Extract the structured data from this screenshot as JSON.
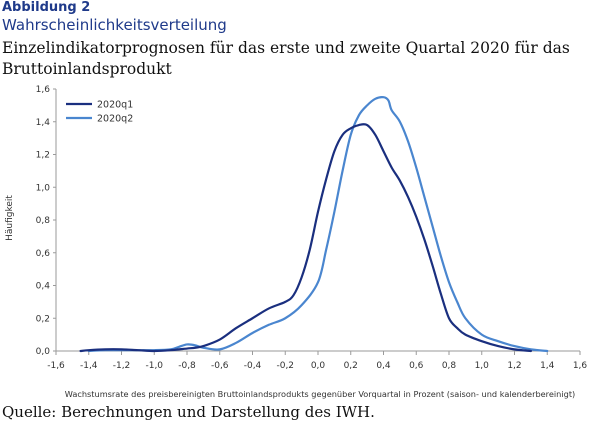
{
  "figure": {
    "label": "Abbildung 2",
    "title": "Wahrscheinlichkeitsverteilung",
    "subtitle": "Einzelindikatorprognosen für das erste und zweite Quartal 2020 für das Bruttoinlandsprodukt",
    "source": "Quelle: Berechnungen und Darstellung des IWH."
  },
  "colors": {
    "series1": "#1a2f7f",
    "series2": "#4a86cf",
    "axis": "#9a9a9a",
    "text": "#333333"
  },
  "chart_data": {
    "type": "line",
    "title": "",
    "xlabel": "Wachstumsrate des preisbereinigten Bruttoinlandsprodukts gegenüber Vorquartal in Prozent (saison- und kalenderbereinigt)",
    "ylabel": "Häufigkeit",
    "xlim": [
      -1.6,
      1.6
    ],
    "ylim": [
      0,
      1.6
    ],
    "x_ticks": [
      "-1,6",
      "-1,4",
      "-1,2",
      "-1,0",
      "-0,8",
      "-0,6",
      "-0,4",
      "-0,2",
      "0,0",
      "0,2",
      "0,4",
      "0,6",
      "0,8",
      "1,0",
      "1,2",
      "1,4",
      "1,6"
    ],
    "y_ticks": [
      "0,0",
      "0,2",
      "0,4",
      "0,6",
      "0,8",
      "1,0",
      "1,2",
      "1,4",
      "1,6"
    ],
    "grid": false,
    "legend_position": "top-left",
    "series": [
      {
        "name": "2020q1",
        "color": "#1a2f7f",
        "x": [
          -1.45,
          -1.4,
          -1.3,
          -1.2,
          -1.1,
          -1.0,
          -0.9,
          -0.8,
          -0.75,
          -0.7,
          -0.6,
          -0.5,
          -0.4,
          -0.3,
          -0.2,
          -0.15,
          -0.1,
          -0.05,
          0.0,
          0.05,
          0.1,
          0.15,
          0.2,
          0.25,
          0.3,
          0.35,
          0.4,
          0.45,
          0.5,
          0.55,
          0.6,
          0.65,
          0.7,
          0.75,
          0.8,
          0.85,
          0.9,
          1.0,
          1.1,
          1.2,
          1.3
        ],
        "y": [
          0.0,
          0.005,
          0.01,
          0.01,
          0.005,
          0.0,
          0.005,
          0.015,
          0.02,
          0.03,
          0.07,
          0.14,
          0.2,
          0.26,
          0.3,
          0.34,
          0.45,
          0.62,
          0.85,
          1.05,
          1.22,
          1.32,
          1.36,
          1.38,
          1.38,
          1.32,
          1.22,
          1.12,
          1.04,
          0.94,
          0.82,
          0.68,
          0.52,
          0.35,
          0.2,
          0.14,
          0.1,
          0.06,
          0.03,
          0.01,
          0.0
        ]
      },
      {
        "name": "2020q2",
        "color": "#4a86cf",
        "x": [
          -1.4,
          -1.3,
          -1.2,
          -1.1,
          -1.0,
          -0.9,
          -0.85,
          -0.8,
          -0.75,
          -0.7,
          -0.6,
          -0.5,
          -0.4,
          -0.3,
          -0.2,
          -0.1,
          0.0,
          0.05,
          0.1,
          0.15,
          0.2,
          0.25,
          0.3,
          0.35,
          0.4,
          0.43,
          0.45,
          0.5,
          0.55,
          0.6,
          0.65,
          0.7,
          0.75,
          0.8,
          0.85,
          0.9,
          1.0,
          1.1,
          1.2,
          1.3,
          1.4
        ],
        "y": [
          0.0,
          0.005,
          0.005,
          0.005,
          0.005,
          0.01,
          0.025,
          0.04,
          0.035,
          0.02,
          0.01,
          0.05,
          0.11,
          0.16,
          0.2,
          0.28,
          0.42,
          0.62,
          0.85,
          1.1,
          1.32,
          1.44,
          1.5,
          1.54,
          1.55,
          1.53,
          1.47,
          1.4,
          1.28,
          1.12,
          0.94,
          0.76,
          0.58,
          0.42,
          0.3,
          0.2,
          0.1,
          0.06,
          0.03,
          0.01,
          0.0
        ]
      }
    ]
  }
}
